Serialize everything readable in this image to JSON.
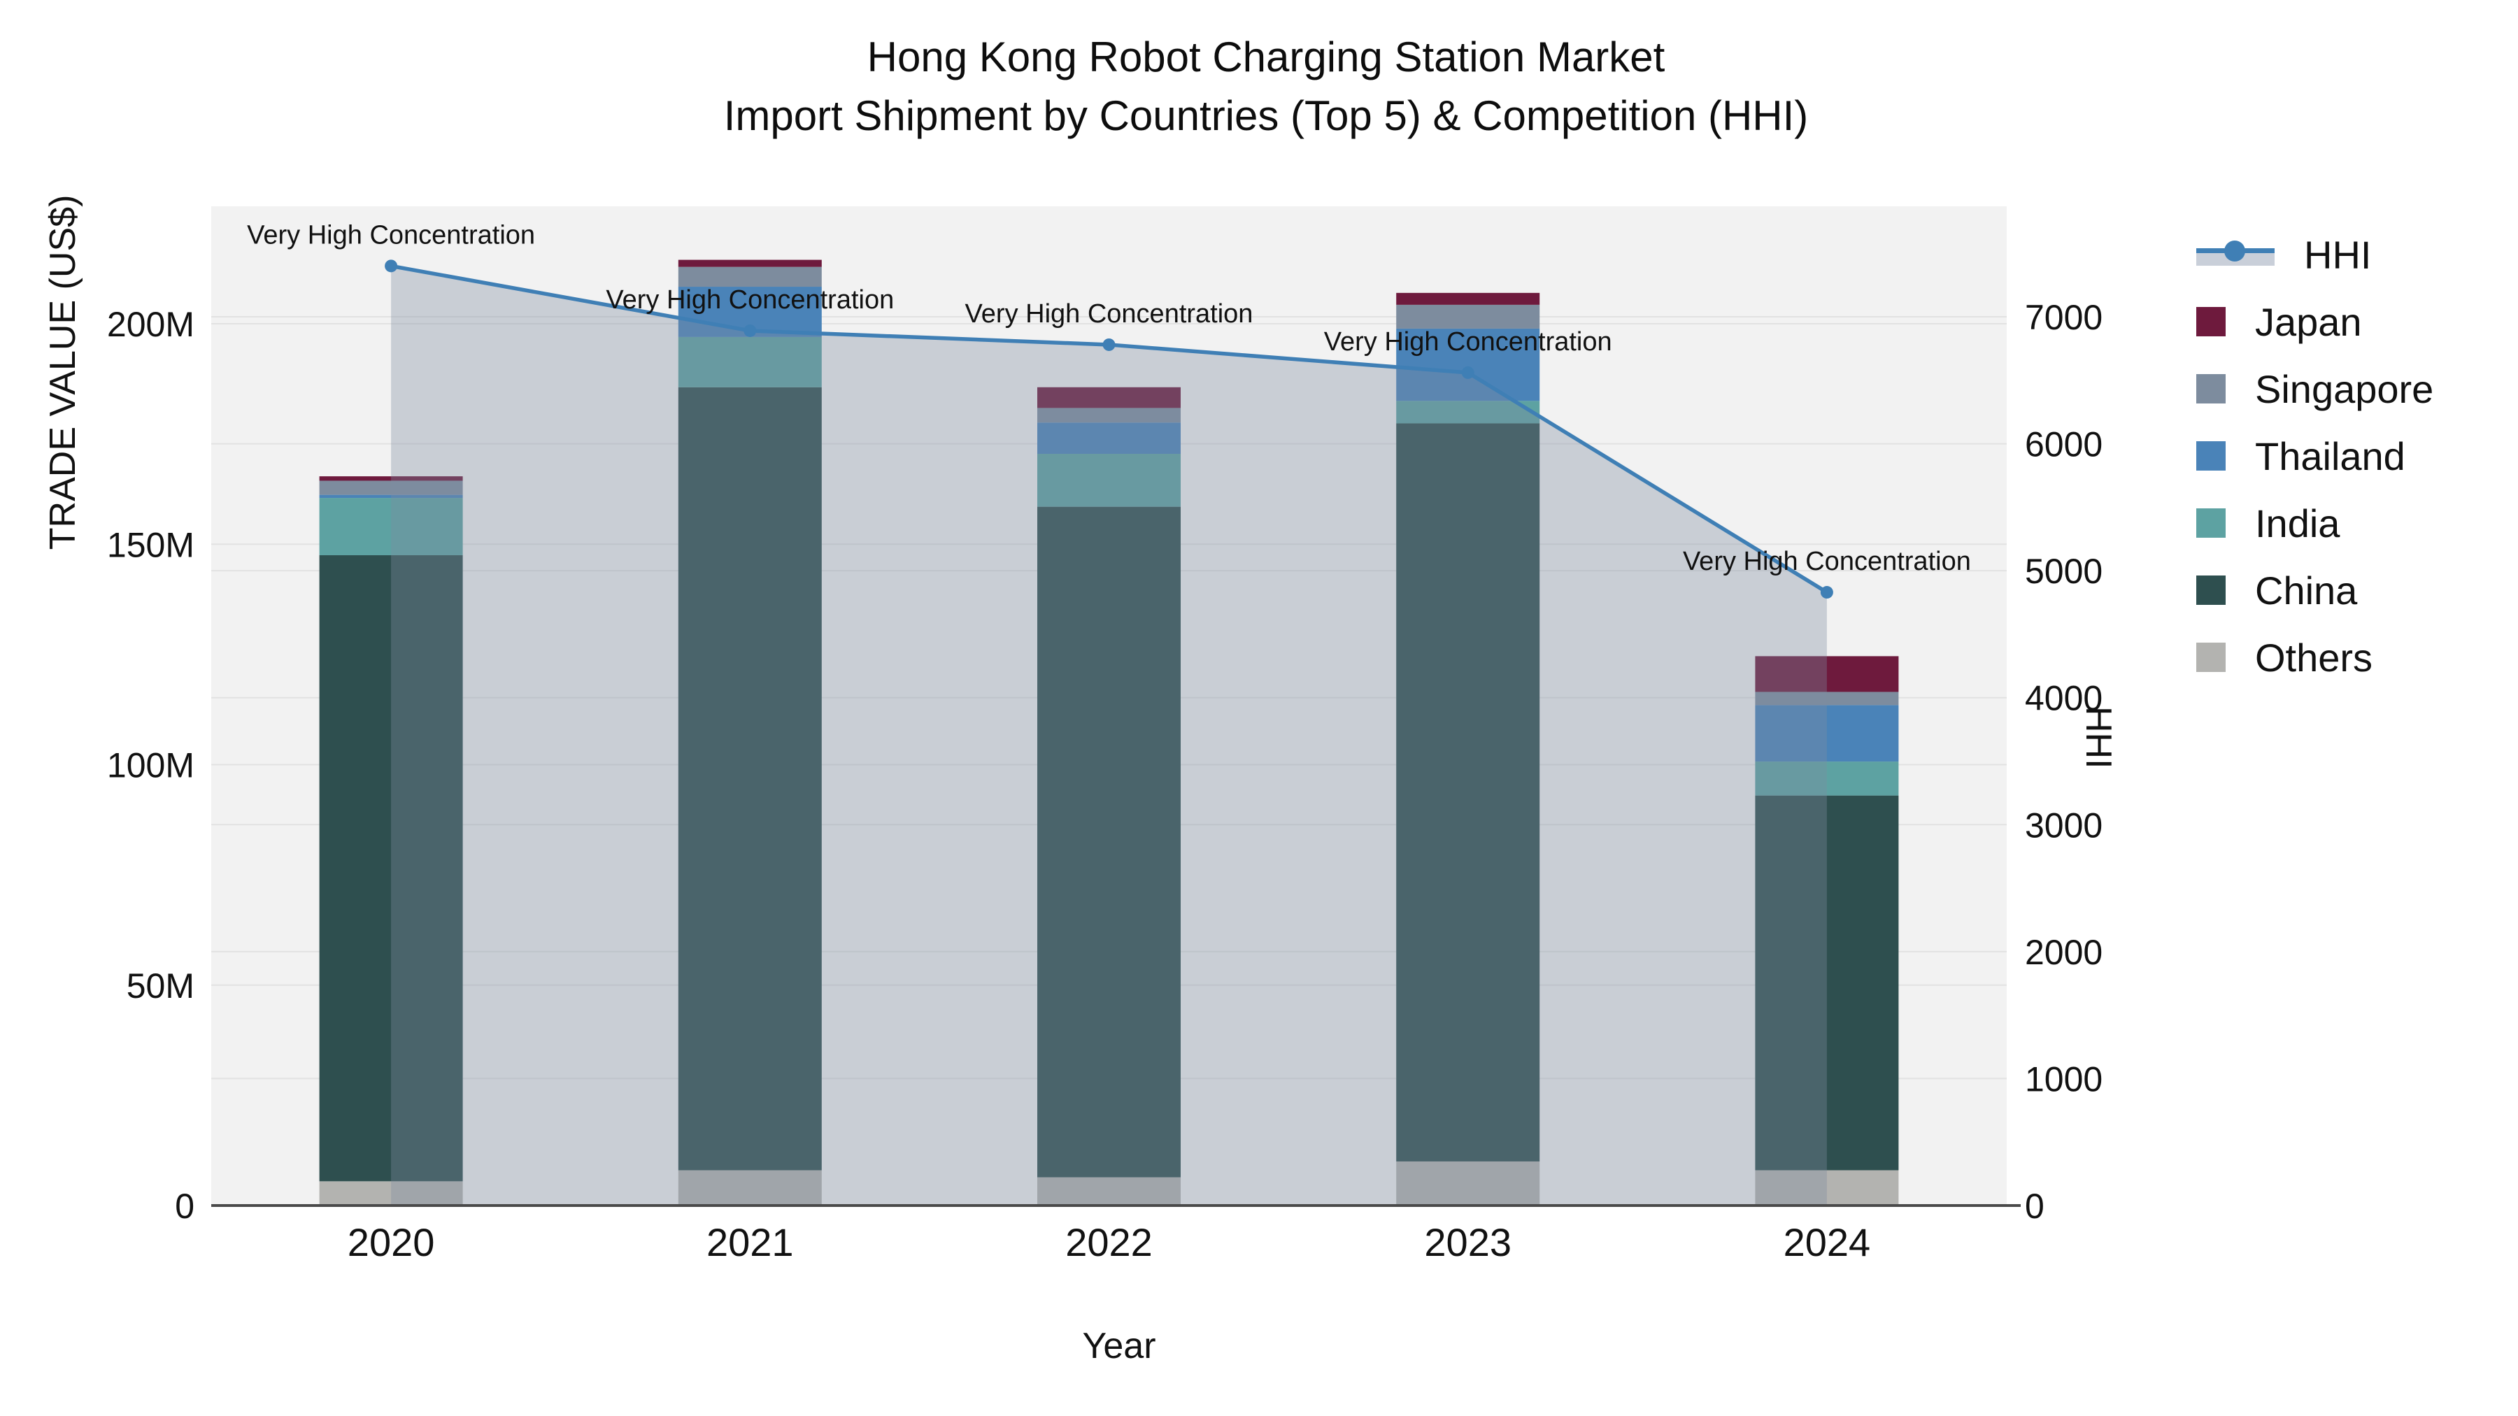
{
  "title": {
    "line1": "Hong Kong Robot Charging Station Market",
    "line2": "Import Shipment by Countries (Top 5) & Competition (HHI)"
  },
  "axis_titles": {
    "x": "Year",
    "y_left": "TRADE VALUE (US$)",
    "y_right": "HHI"
  },
  "legend": {
    "items": [
      {
        "label": "HHI",
        "type": "line",
        "color": "#3F7FB5"
      },
      {
        "label": "Japan",
        "type": "box",
        "color": "#6E1A3D"
      },
      {
        "label": "Singapore",
        "type": "box",
        "color": "#7D8C9E"
      },
      {
        "label": "Thailand",
        "type": "box",
        "color": "#4A83B8"
      },
      {
        "label": "India",
        "type": "box",
        "color": "#5DA2A2"
      },
      {
        "label": "China",
        "type": "box",
        "color": "#2E4F4F"
      },
      {
        "label": "Others",
        "type": "box",
        "color": "#B3B3B0"
      }
    ]
  },
  "chart_data": {
    "type": "bar",
    "subtype": "stacked-bars-with-line-overlay",
    "categories": [
      "2020",
      "2021",
      "2022",
      "2023",
      "2024"
    ],
    "bar_units": "USD millions",
    "series": [
      {
        "name": "Others",
        "color": "#B3B3B0",
        "values": [
          5.5,
          8.0,
          6.4,
          10.0,
          8.0
        ]
      },
      {
        "name": "China",
        "color": "#2E4F4F",
        "values": [
          142.0,
          177.6,
          152.1,
          167.4,
          85.0
        ]
      },
      {
        "name": "India",
        "color": "#5DA2A2",
        "values": [
          13.0,
          11.4,
          12.0,
          5.1,
          7.7
        ]
      },
      {
        "name": "Thailand",
        "color": "#4A83B8",
        "values": [
          0.7,
          11.4,
          7.1,
          16.4,
          12.8
        ]
      },
      {
        "name": "Singapore",
        "color": "#7D8C9E",
        "values": [
          3.2,
          4.5,
          3.3,
          5.4,
          3.0
        ]
      },
      {
        "name": "Japan",
        "color": "#6E1A3D",
        "values": [
          1.0,
          1.6,
          4.7,
          2.7,
          8.1
        ]
      }
    ],
    "bar_totals": [
      165.4,
      214.5,
      185.6,
      207.0,
      124.6
    ],
    "line_series": {
      "name": "HHI",
      "color": "#3F7FB5",
      "fill_color": "rgba(127,140,160,0.35)",
      "values": [
        7400,
        6890,
        6780,
        6560,
        4830
      ]
    },
    "annotations": [
      "Very High Concentration",
      "Very High Concentration",
      "Very High Concentration",
      "Very High Concentration",
      "Very High Concentration"
    ],
    "y_left": {
      "label": "TRADE VALUE (US$)",
      "tick_values": [
        0,
        50,
        100,
        150,
        200
      ],
      "tick_labels": [
        "0",
        "50M",
        "100M",
        "150M",
        "200M"
      ],
      "range_millions": [
        0,
        226
      ]
    },
    "y_right": {
      "label": "HHI",
      "tick_values": [
        0,
        1000,
        2000,
        3000,
        4000,
        5000,
        6000,
        7000
      ],
      "tick_labels": [
        "0",
        "1000",
        "2000",
        "3000",
        "4000",
        "5000",
        "6000",
        "7000"
      ],
      "range": [
        0,
        7870
      ]
    },
    "xlabel": "Year",
    "grid": true,
    "plot_bg": "#F2F2F2",
    "grid_color": "#E2E2E2",
    "axisline_color": "#4A4A4A",
    "legend_position": "right"
  }
}
